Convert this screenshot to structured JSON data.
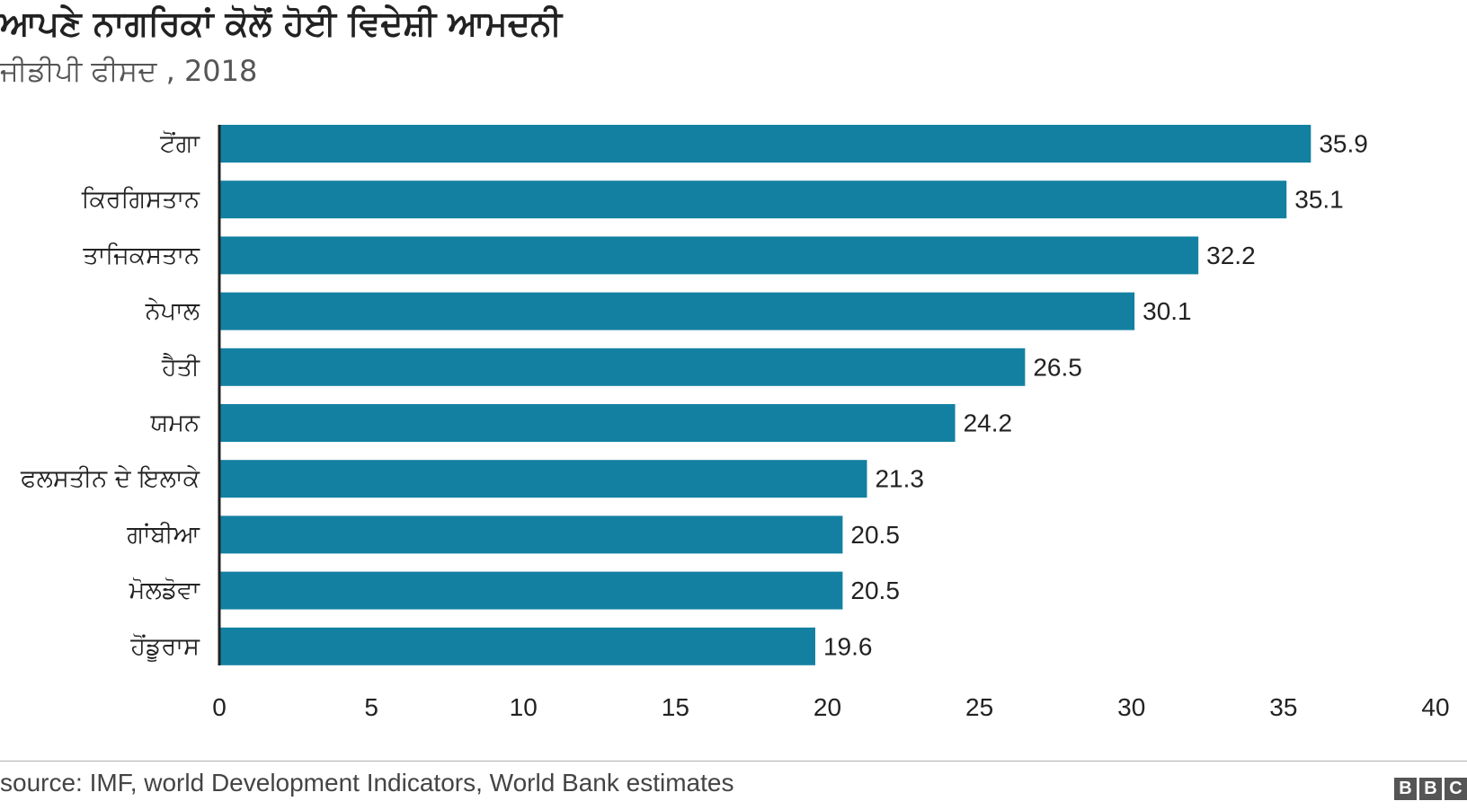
{
  "chart_data": {
    "type": "bar",
    "orientation": "horizontal",
    "title": "ਆਪਣੇ ਨਾਗਰਿਕਾਂ ਕੋਲੋਂ ਹੋਈ ਵਿਦੇਸ਼ੀ ਆਮਦਨੀ",
    "subtitle": "ਜੀਡੀਪੀ ਫੀਸਦ , 2018",
    "categories": [
      "ਟੋਂਗਾ",
      "ਕਿਰਗਿਸਤਾਨ",
      "ਤਾਜਿਕਸਤਾਨ",
      "ਨੇਪਾਲ",
      "ਹੈਤੀ",
      "ਯਮਨ",
      "ਫਲਸਤੀਨ ਦੇ ਇਲਾਕੇ",
      "ਗਾਂਬੀਆ",
      "ਮੋਲਡੋਵਾ",
      "ਹੋਂਡੂਰਾਸ"
    ],
    "values": [
      35.9,
      35.1,
      32.2,
      30.1,
      26.5,
      24.2,
      21.3,
      20.5,
      20.5,
      19.6
    ],
    "value_labels": [
      "35.9",
      "35.1",
      "32.2",
      "30.1",
      "26.5",
      "24.2",
      "21.3",
      "20.5",
      "20.5",
      "19.6"
    ],
    "xlim": [
      0,
      40
    ],
    "xticks": [
      0,
      5,
      10,
      15,
      20,
      25,
      30,
      35,
      40
    ],
    "xlabel": "",
    "ylabel": "",
    "grid": false,
    "bar_color": "#1380a1"
  },
  "footer": {
    "source": "source: IMF, world Development Indicators, World Bank estimates",
    "logo_letters": [
      "B",
      "B",
      "C"
    ]
  }
}
